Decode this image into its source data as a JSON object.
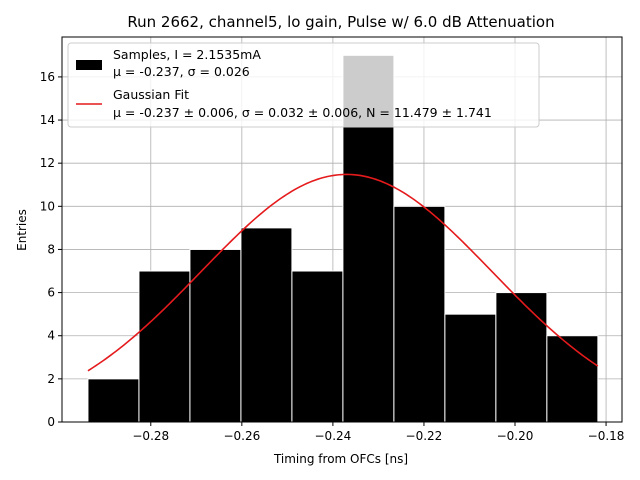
{
  "chart_data": {
    "type": "bar",
    "title": "Run 2662, channel5, lo gain, Pulse w/ 6.0 dB Attenuation",
    "xlabel": "Timing from OFCs [ns]",
    "ylabel": "Entries",
    "xlim": [
      -0.2995,
      -0.1765
    ],
    "ylim": [
      0,
      17.85
    ],
    "grid": true,
    "legend_position": "top-left",
    "xticks": [
      -0.28,
      -0.26,
      -0.24,
      -0.22,
      -0.2,
      -0.18
    ],
    "xtick_labels": [
      "−0.28",
      "−0.26",
      "−0.24",
      "−0.22",
      "−0.20",
      "−0.18"
    ],
    "yticks": [
      0,
      2,
      4,
      6,
      8,
      10,
      12,
      14,
      16
    ],
    "ytick_labels": [
      "0",
      "2",
      "4",
      "6",
      "8",
      "10",
      "12",
      "14",
      "16"
    ],
    "bin_edges": [
      -0.2938,
      -0.2826,
      -0.2714,
      -0.2602,
      -0.249,
      -0.2378,
      -0.2266,
      -0.2154,
      -0.2042,
      -0.193,
      -0.1818
    ],
    "counts": [
      2,
      7,
      8,
      9,
      7,
      17,
      10,
      5,
      6,
      4
    ],
    "histogram_color": "#000000",
    "fit": {
      "type": "gaussian",
      "mu": -0.237,
      "sigma": 0.032,
      "N": 11.479,
      "color": "#e41a1c"
    },
    "legend": [
      {
        "line1": "Samples, I = 2.1535mA",
        "line2": "μ = -0.237, σ = 0.026"
      },
      {
        "line1": "Gaussian Fit",
        "line2": "μ = -0.237 ± 0.006, σ = 0.032 ± 0.006, N = 11.479 ± 1.741"
      }
    ]
  }
}
